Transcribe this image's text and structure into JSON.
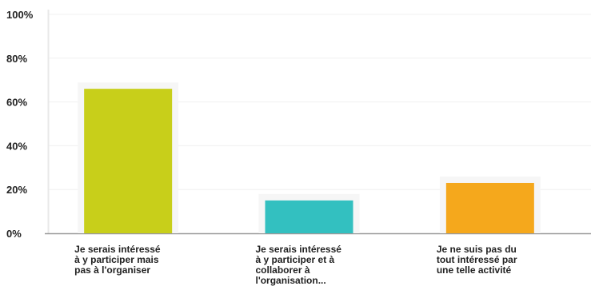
{
  "chart_data": {
    "type": "bar",
    "categories": [
      "Je serais intéressé\nà y participer mais\npas à l'organiser",
      "Je serais intéressé\nà y participer et à\ncollaborer à\nl'organisation...",
      "Je ne suis pas du\ntout intéressé par\nune telle activité"
    ],
    "values": [
      66,
      15,
      23
    ],
    "colors": [
      "#c8cf1a",
      "#33c0c0",
      "#f5a81c"
    ],
    "ylim": [
      0,
      100
    ],
    "yticks": [
      "0%",
      "20%",
      "40%",
      "60%",
      "80%",
      "100%"
    ],
    "grid": true,
    "legend": false
  }
}
